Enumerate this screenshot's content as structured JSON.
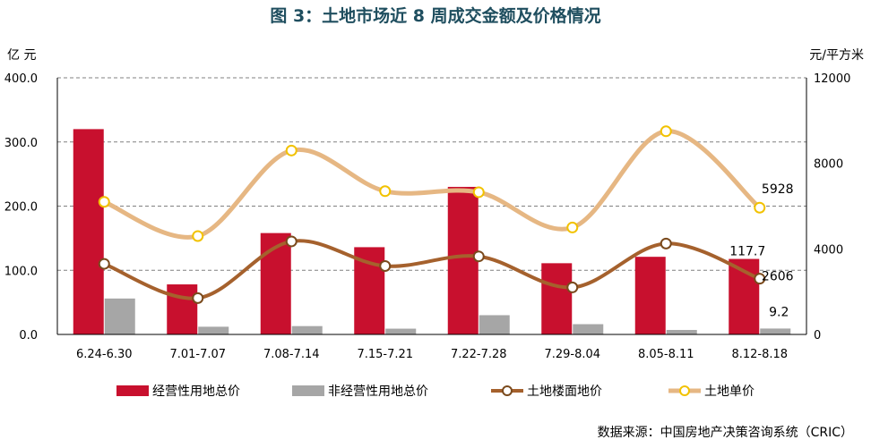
{
  "title": "图 3：土地市场近 8 周成交金额及价格情况",
  "source": "数据来源：中国房地产决策咨询系统（CRIC）",
  "colors": {
    "title": "#1f4e5f",
    "bar_primary": "#c8102e",
    "bar_secondary": "#a6a6a6",
    "line_floor": "#a5612d",
    "line_unit": "#e6b783",
    "marker_fill": "#ffffff",
    "marker_edge_unit": "#f2c200",
    "marker_edge_floor": "#7a4a1d",
    "grid": "#808080",
    "axis": "#000000"
  },
  "chart_data": {
    "type": "bar",
    "title": "图 3：土地市场近 8 周成交金额及价格情况",
    "categories": [
      "6.24-6.30",
      "7.01-7.07",
      "7.08-7.14",
      "7.15-7.21",
      "7.22-7.28",
      "7.29-8.04",
      "8.05-8.11",
      "8.12-8.18"
    ],
    "y_left": {
      "unit": "亿 元",
      "ylim": [
        0,
        400
      ],
      "ticks": [
        "0.0",
        "100.0",
        "200.0",
        "300.0",
        "400.0"
      ],
      "tick_values": [
        0,
        100,
        200,
        300,
        400
      ]
    },
    "y_right": {
      "unit": "元/平方米",
      "ylim": [
        0,
        12000
      ],
      "ticks": [
        "0",
        "4000",
        "8000",
        "12000"
      ],
      "tick_values": [
        0,
        4000,
        8000,
        12000
      ]
    },
    "grid": true,
    "legend_placement": "bottom",
    "series": [
      {
        "name": "经营性用地总价",
        "type": "bar",
        "axis": "left",
        "values": [
          320,
          78,
          158,
          136,
          230,
          111,
          121,
          117.7
        ]
      },
      {
        "name": "非经营性用地总价",
        "type": "bar",
        "axis": "left",
        "values": [
          56,
          12,
          13,
          9,
          30,
          16,
          7,
          9.2
        ]
      },
      {
        "name": "土地楼面地价",
        "type": "line",
        "axis": "right",
        "values": [
          3300,
          1700,
          4350,
          3200,
          3650,
          2200,
          4250,
          2606
        ]
      },
      {
        "name": "土地单价",
        "type": "line",
        "axis": "right",
        "values": [
          6200,
          4600,
          8600,
          6700,
          6650,
          5000,
          9500,
          5928
        ]
      }
    ],
    "annotations": [
      {
        "series": 0,
        "index": 7,
        "text": "117.7"
      },
      {
        "series": 1,
        "index": 7,
        "text": "9.2"
      },
      {
        "series": 3,
        "index": 7,
        "text": "5928"
      },
      {
        "series": 2,
        "index": 7,
        "text": "2606"
      }
    ]
  }
}
